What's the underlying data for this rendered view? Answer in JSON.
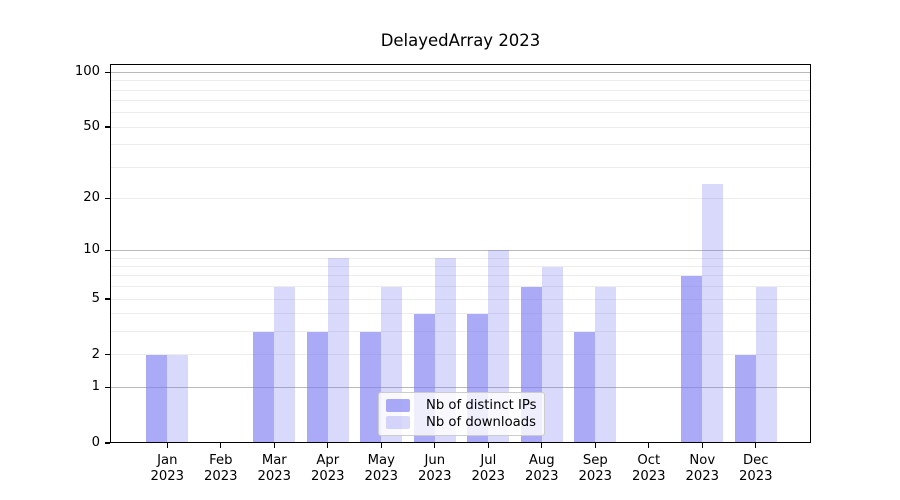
{
  "chart_data": {
    "type": "bar",
    "title": "DelayedArray 2023",
    "categories": [
      "Jan 2023",
      "Feb 2023",
      "Mar 2023",
      "Apr 2023",
      "May 2023",
      "Jun 2023",
      "Jul 2023",
      "Aug 2023",
      "Sep 2023",
      "Oct 2023",
      "Nov 2023",
      "Dec 2023"
    ],
    "series": [
      {
        "name": "Nb of distinct IPs",
        "color": "#7878f0",
        "opacity": 0.63,
        "values": [
          2,
          0,
          3,
          3,
          3,
          4,
          4,
          6,
          3,
          0,
          7,
          2
        ]
      },
      {
        "name": "Nb of downloads",
        "color": "#7878f0",
        "opacity": 0.28,
        "values": [
          2,
          0,
          6,
          9,
          6,
          9,
          10,
          8,
          6,
          0,
          24,
          6
        ]
      }
    ],
    "xlabel": "",
    "ylabel": "",
    "yscale": "log1p",
    "ylim": [
      0,
      111
    ],
    "yticks": [
      0,
      1,
      2,
      5,
      10,
      20,
      50,
      100
    ],
    "grid": "horizontal major+minor",
    "legend_position": "lower center",
    "grid_colors": {
      "minor": "#ececec",
      "major": "#b9b9b9"
    },
    "frame_color": "#000000",
    "background": "#ffffff"
  }
}
